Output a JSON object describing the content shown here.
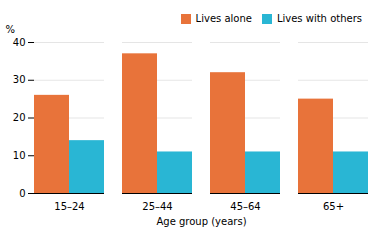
{
  "chart_data": {
    "type": "bar",
    "categories": [
      "15–24",
      "25–44",
      "45–64",
      "65+"
    ],
    "series": [
      {
        "name": "Lives alone",
        "color": "#E8733A",
        "values": [
          26,
          37,
          32,
          25
        ]
      },
      {
        "name": "Lives with others",
        "color": "#29B6D4",
        "values": [
          14,
          11,
          11,
          11
        ]
      }
    ],
    "xlabel": "Age group (years)",
    "ylabel": "%",
    "ylim": [
      0,
      40
    ],
    "yticks": [
      0,
      10,
      20,
      30,
      40
    ],
    "grid": true,
    "legend": "upper right"
  }
}
